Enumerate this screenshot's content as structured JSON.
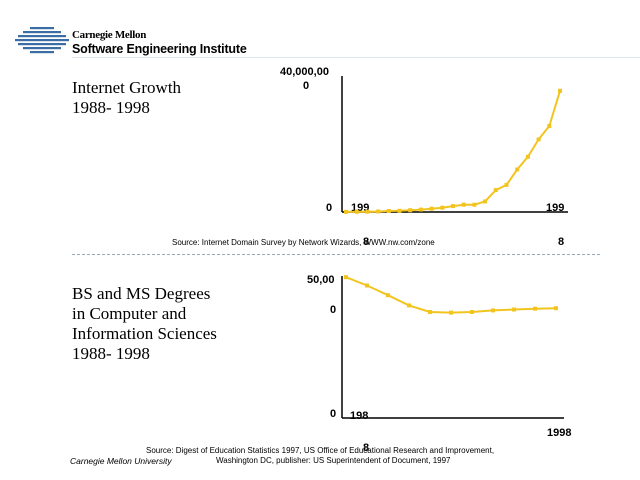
{
  "header": {
    "org_line1": "Carnegie Mellon",
    "org_line2": "Software Engineering Institute"
  },
  "footer": {
    "org": "Carnegie Mellon University"
  },
  "colors": {
    "series": "#F2C41E",
    "axis": "#000000",
    "logo": "#3a6ea5",
    "divider": "#b8c8d8"
  },
  "chart_data": [
    {
      "type": "line",
      "title_line1": "Internet Growth",
      "title_line2": "1988- 1998",
      "y_max_label_part1": "40,000,00",
      "y_max_label_part2": "0",
      "y_min_label": "0",
      "x_start_label": "199",
      "x_start_label_overlap": "8",
      "x_end_label": "199",
      "x_end_label_2": "8",
      "ylim": [
        0,
        40000000
      ],
      "source": "Source: Internet Domain Survey by Network Wizards, WWW.nw.com/zone",
      "series": [
        {
          "x": [
            1988.0,
            1988.5,
            1989.0,
            1989.5,
            1990.0,
            1990.5,
            1991.0,
            1991.5,
            1992.0,
            1992.5,
            1993.0,
            1993.5,
            1994.0,
            1994.5,
            1995.0,
            1995.5,
            1996.0,
            1996.5,
            1997.0,
            1997.5,
            1998.0
          ],
          "values": [
            28000,
            56000,
            80000,
            160000,
            313000,
            376000,
            535000,
            727000,
            992000,
            1313000,
            1776000,
            2217000,
            2217000,
            3212000,
            6642000,
            8200000,
            12881000,
            16729000,
            22000000,
            26053000,
            36739000
          ]
        }
      ]
    },
    {
      "type": "line",
      "title_line1": "BS and MS Degrees",
      "title_line2": "in Computer and",
      "title_line3": "Information Sciences",
      "title_line4": "1988- 1998",
      "y_max_label_part1": "50,00",
      "y_max_label_part2": "0",
      "y_min_label": "0",
      "x_start_label": "198",
      "x_start_label_overlap": "8",
      "x_end_label": "1998",
      "ylim": [
        0,
        50000
      ],
      "source_line1": "Source: Digest of Education Statistics 1997, US Office of Educational Research and Improvement,",
      "source_line2": "Washington DC, publisher: US Superintendent of Document, 1997",
      "series": [
        {
          "x": [
            1988,
            1989,
            1990,
            1991,
            1992,
            1993,
            1994,
            1995,
            1996,
            1997,
            1998
          ],
          "values": [
            51000,
            48000,
            44500,
            40800,
            38400,
            38200,
            38400,
            39000,
            39300,
            39600,
            39800
          ]
        }
      ]
    }
  ]
}
